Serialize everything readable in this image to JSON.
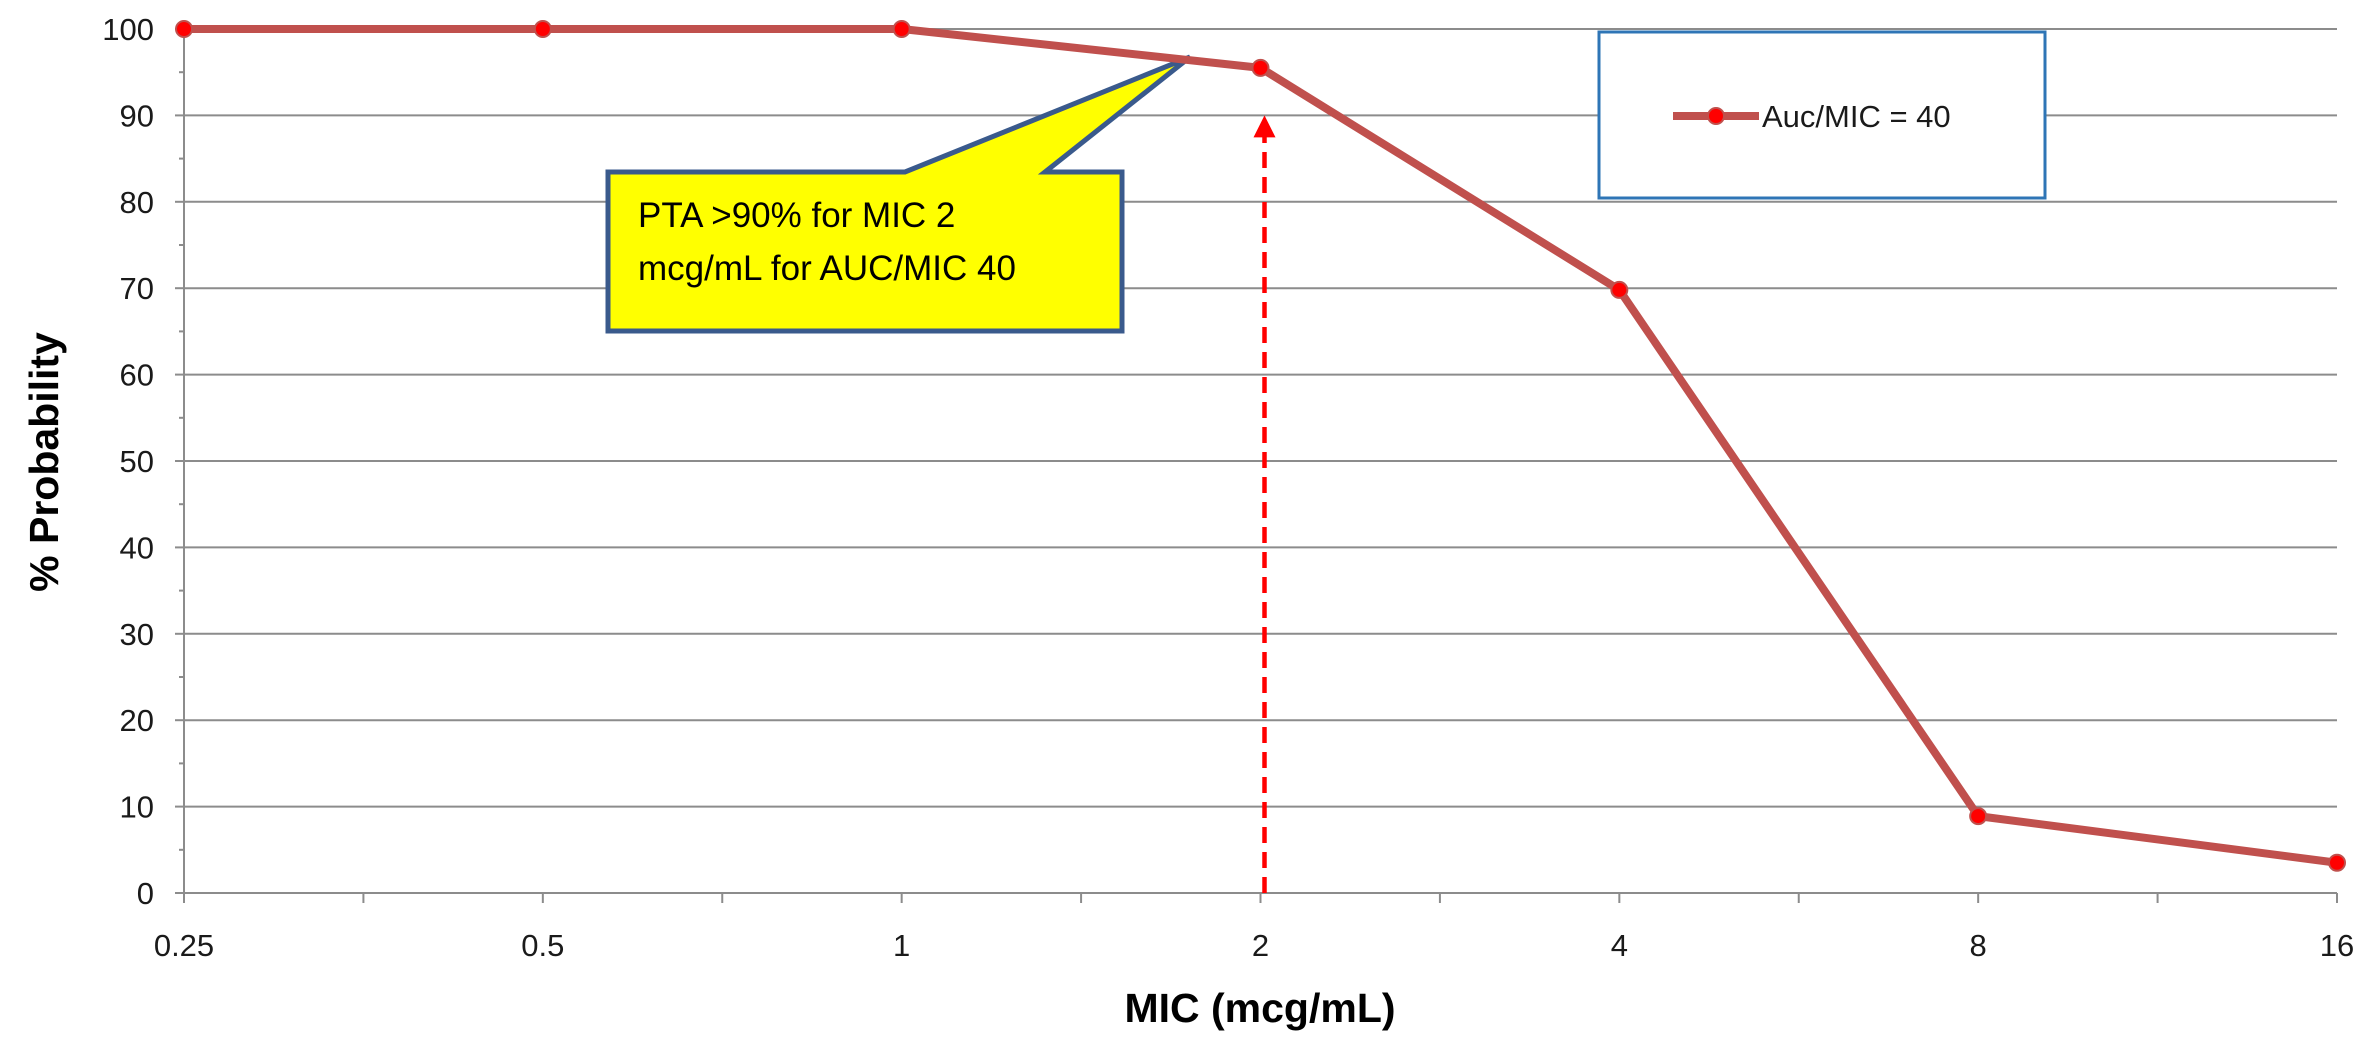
{
  "chart_data": {
    "type": "line",
    "x_scale": "log2",
    "x": [
      0.25,
      0.5,
      1,
      2,
      4,
      8,
      16
    ],
    "x_tick_labels": [
      "0.25",
      "0.5",
      "1",
      "2",
      "4",
      "8",
      "16"
    ],
    "ylim": [
      0,
      100
    ],
    "y_ticks": [
      0,
      10,
      20,
      30,
      40,
      50,
      60,
      70,
      80,
      90,
      100
    ],
    "y_tick_labels": [
      "0",
      "10",
      "20",
      "30",
      "40",
      "50",
      "60",
      "70",
      "80",
      "90",
      "100"
    ],
    "xlabel": "MIC (mcg/mL)",
    "ylabel": "% Probability",
    "grid": "horizontal",
    "legend_position": "top-right",
    "series": [
      {
        "name": "Auc/MIC = 40",
        "values": [
          100,
          100,
          100,
          95.5,
          69.8,
          8.9,
          3.5
        ],
        "line_color": "#C0504D",
        "marker_color": "#FF0000"
      }
    ],
    "annotations": [
      {
        "type": "callout",
        "lines": [
          "PTA >90% for MIC 2",
          "mcg/mL for AUC/MIC 40"
        ],
        "fill": "#FFFF00",
        "border": "#3A5A8C"
      },
      {
        "type": "dashed-arrow",
        "x": 2,
        "y_from": 0,
        "y_to": 90,
        "color": "#FF0000"
      }
    ]
  }
}
